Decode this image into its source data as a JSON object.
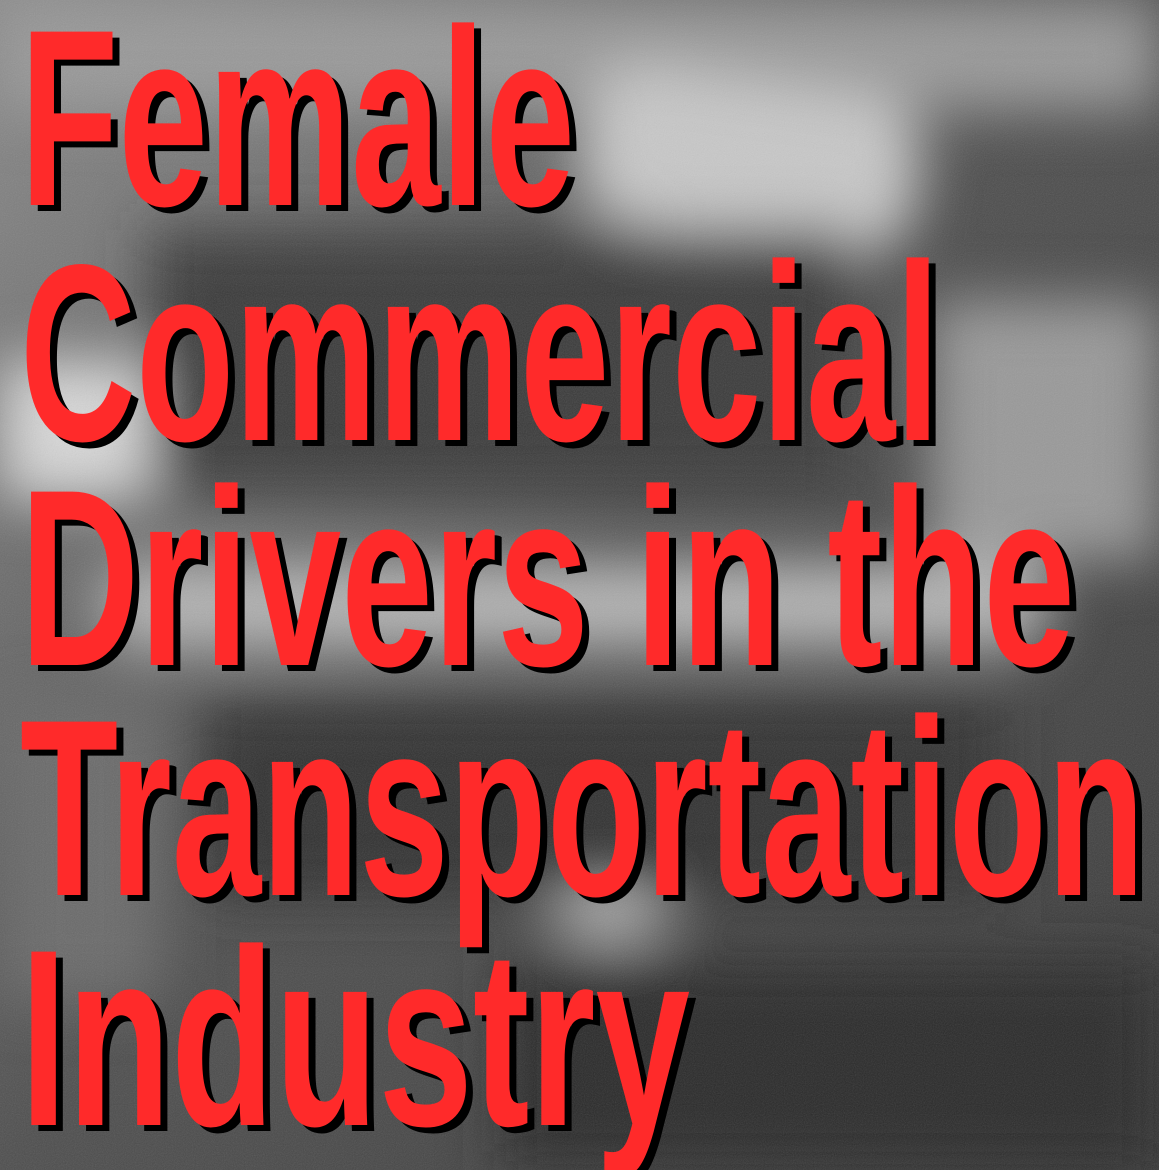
{
  "title_lines": [
    "Female",
    "Commercial",
    "Drivers in the",
    "Transportation",
    "Industry"
  ]
}
